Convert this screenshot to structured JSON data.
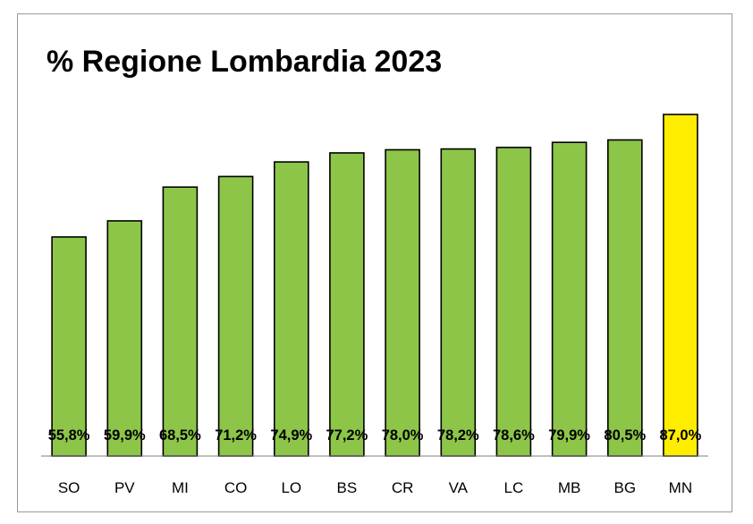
{
  "chart_data": {
    "type": "bar",
    "title": "% Regione Lombardia 2023",
    "categories": [
      "SO",
      "PV",
      "MI",
      "CO",
      "LO",
      "BS",
      "CR",
      "VA",
      "LC",
      "MB",
      "BG",
      "MN"
    ],
    "values": [
      55.8,
      59.9,
      68.5,
      71.2,
      74.9,
      77.2,
      78.0,
      78.2,
      78.6,
      79.9,
      80.5,
      87.0
    ],
    "data_labels": [
      "55,8%",
      "59,9%",
      "68,5%",
      "71,2%",
      "74,9%",
      "77,2%",
      "78,0%",
      "78,2%",
      "78,6%",
      "79,9%",
      "80,5%",
      "87,0%"
    ],
    "xlabel": "",
    "ylabel": "",
    "ylim": [
      0,
      87
    ],
    "grid": false,
    "legend": "none",
    "colors": {
      "bar": "#8dc549",
      "highlight": "#ffed00",
      "highlight_category": "MN",
      "bar_outline": "#000000"
    }
  }
}
